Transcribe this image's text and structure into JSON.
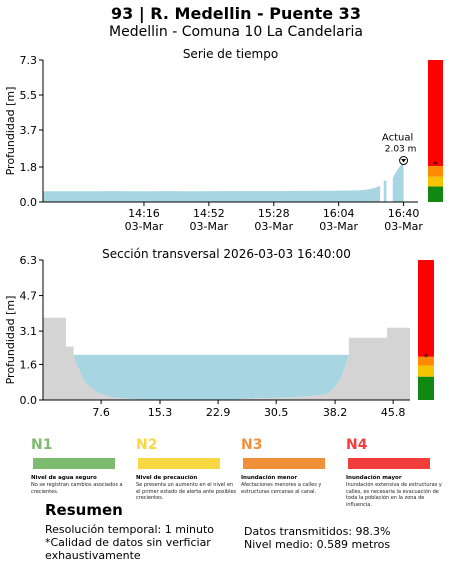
{
  "header": {
    "title": "93 | R. Medellin - Puente 33",
    "subtitle": "Medellin - Comuna 10 La Candelaria"
  },
  "chart_data": [
    {
      "type": "area",
      "title": "Serie de tiempo",
      "ylabel": "Profundidad [m]",
      "xlabel": "",
      "ylim": [
        0,
        7.3
      ],
      "yticks": [
        "0.0",
        "1.8",
        "3.7",
        "5.5",
        "7.3"
      ],
      "ytick_values": [
        0,
        1.8,
        3.7,
        5.5,
        7.3
      ],
      "xticks": [
        {
          "time": "14:16",
          "date": "03-Mar",
          "minutes": 856
        },
        {
          "time": "14:52",
          "date": "03-Mar",
          "minutes": 892
        },
        {
          "time": "15:28",
          "date": "03-Mar",
          "minutes": 928
        },
        {
          "time": "16:04",
          "date": "03-Mar",
          "minutes": 964
        },
        {
          "time": "16:40",
          "date": "03-Mar",
          "minutes": 1000
        }
      ],
      "xlim_minutes": [
        800,
        1008
      ],
      "series": [
        {
          "x_minutes": [
            800,
            810,
            820,
            830,
            840,
            850,
            860,
            870,
            880,
            890,
            900,
            910,
            920,
            930,
            940,
            950,
            960,
            970,
            975,
            980,
            983,
            986,
            987
          ],
          "y": [
            0.55,
            0.55,
            0.55,
            0.55,
            0.56,
            0.55,
            0.55,
            0.56,
            0.55,
            0.55,
            0.56,
            0.56,
            0.56,
            0.56,
            0.57,
            0.57,
            0.58,
            0.59,
            0.6,
            0.64,
            0.7,
            0.8,
            0.85
          ]
        },
        {
          "x_minutes": [
            989,
            990.5
          ],
          "y": [
            1.1,
            1.1
          ]
        },
        {
          "x_minutes": [
            994,
            995.5,
            997,
            998.5,
            1000
          ],
          "y": [
            1.2,
            1.5,
            1.7,
            1.9,
            2.03
          ]
        }
      ],
      "annotation": {
        "label": "Actual",
        "value": "2.03 m",
        "x_minutes": 1000,
        "y": 2.03
      },
      "level_bar": {
        "segments": [
          {
            "from": 0,
            "to": 0.8,
            "color": "#118811"
          },
          {
            "from": 0.8,
            "to": 1.3,
            "color": "#f5c400"
          },
          {
            "from": 1.3,
            "to": 1.85,
            "color": "#ff8c00"
          },
          {
            "from": 1.85,
            "to": 7.3,
            "color": "#ff0000"
          }
        ],
        "marker": 2.03
      }
    },
    {
      "type": "area",
      "title": "Sección transversal 2026-03-03 16:40:00",
      "ylabel": "Profundidad [m]",
      "xlabel": "",
      "ylim": [
        0,
        6.3
      ],
      "xlim": [
        0,
        48
      ],
      "yticks": [
        "0.0",
        "1.6",
        "3.1",
        "4.7",
        "6.3"
      ],
      "ytick_values": [
        0,
        1.6,
        3.1,
        4.7,
        6.3
      ],
      "xticks": [
        "7.6",
        "15.3",
        "22.9",
        "30.5",
        "38.2",
        "45.8"
      ],
      "xtick_values": [
        7.6,
        15.3,
        22.9,
        30.5,
        38.2,
        45.8
      ],
      "water_level": 2.03,
      "ground_profile": {
        "x": [
          0,
          3,
          3,
          4,
          4,
          4.5,
          5.5,
          7,
          9,
          12,
          16,
          20,
          24,
          28,
          32,
          35,
          37,
          38,
          39,
          39.5,
          40,
          40,
          42,
          45,
          45,
          48
        ],
        "y": [
          3.7,
          3.7,
          2.4,
          2.4,
          2.05,
          1.5,
          0.8,
          0.35,
          0.12,
          0.03,
          0,
          0,
          0,
          0.08,
          0.1,
          0.18,
          0.25,
          0.5,
          1.0,
          1.5,
          2.0,
          2.8,
          2.8,
          2.8,
          3.25,
          3.25
        ]
      },
      "level_bar": {
        "segments": [
          {
            "from": 0,
            "to": 1.05,
            "color": "#118811"
          },
          {
            "from": 1.05,
            "to": 1.55,
            "color": "#f5c400"
          },
          {
            "from": 1.55,
            "to": 1.95,
            "color": "#ff8c00"
          },
          {
            "from": 1.95,
            "to": 6.3,
            "color": "#ff0000"
          }
        ],
        "marker": 2.03
      }
    }
  ],
  "legend": [
    {
      "code": "N1",
      "name": "Nivel de agua seguro",
      "desc": "No se registran cambios asociados a crecientes.",
      "color": "#7dbb6e"
    },
    {
      "code": "N2",
      "name": "Nivel de precaución",
      "desc": "Se presenta un aumento en el nivel en el primer estado de alerta ante posibles crecientes.",
      "color": "#f7d843"
    },
    {
      "code": "N3",
      "name": "Inundación menor",
      "desc": "Afectaciones menores a calles y estructuras cercanas al canal.",
      "color": "#f0913a"
    },
    {
      "code": "N4",
      "name": "Inundación mayor",
      "desc": "Inundación extensiva de estructuras y calles, es necesaria la evacuación de toda la población en la zona de influencia.",
      "color": "#f23d3d"
    }
  ],
  "summary": {
    "title": "Resumen",
    "resolution": "Resolución temporal: 1 minuto",
    "quality_note": "*Calidad de datos sin verficiar exhaustivamente",
    "transmitted": "Datos transmitidos: 98.3%",
    "mean_level": "Nivel medio: 0.589 metros"
  },
  "colors": {
    "water": "#a8d5e2",
    "ground": "#d4d4d4"
  }
}
